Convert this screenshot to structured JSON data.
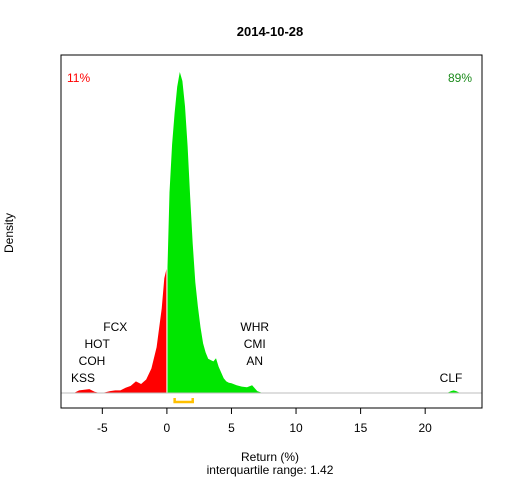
{
  "chart_data": {
    "type": "area",
    "title": "2014-10-28",
    "xlabel": "Return (%)",
    "ylabel": "Density",
    "subtitle": "interquartile range: 1.42",
    "xlim": [
      -8.2,
      24.4
    ],
    "ylim": [
      0,
      0.5
    ],
    "xticks": [
      -5,
      0,
      5,
      10,
      15,
      20
    ],
    "grid": false,
    "negative_share_label": "11%",
    "positive_share_label": "89%",
    "colors": {
      "negative": "#ff0000",
      "positive": "#00e600",
      "iqr": "#ffc000",
      "pct_negative": "#ff0000",
      "pct_positive": "#1a8a1a"
    },
    "iqr": [
      0.6,
      2.0
    ],
    "density": {
      "x": [
        -7.2,
        -6.8,
        -6.4,
        -6.0,
        -5.6,
        -5.2,
        -4.8,
        -4.4,
        -4.0,
        -3.6,
        -3.2,
        -2.8,
        -2.4,
        -2.0,
        -1.6,
        -1.2,
        -0.8,
        -0.4,
        -0.2,
        0.0,
        0.05,
        0.2,
        0.4,
        0.6,
        0.8,
        1.0,
        1.2,
        1.4,
        1.6,
        1.8,
        2.0,
        2.2,
        2.4,
        2.6,
        2.8,
        3.0,
        3.2,
        3.4,
        3.6,
        3.8,
        4.0,
        4.2,
        4.4,
        4.6,
        4.8,
        5.0,
        5.4,
        5.8,
        6.2,
        6.6,
        7.0,
        7.4,
        7.8,
        8.2,
        21.6,
        21.8,
        22.0,
        22.2,
        22.4,
        22.6,
        22.8
      ],
      "y": [
        0.0,
        0.004,
        0.005,
        0.006,
        0.002,
        0.0,
        0.001,
        0.003,
        0.004,
        0.004,
        0.008,
        0.011,
        0.018,
        0.014,
        0.021,
        0.038,
        0.071,
        0.131,
        0.178,
        0.195,
        0.195,
        0.311,
        0.386,
        0.434,
        0.475,
        0.498,
        0.484,
        0.445,
        0.383,
        0.306,
        0.232,
        0.172,
        0.134,
        0.102,
        0.077,
        0.063,
        0.053,
        0.051,
        0.049,
        0.054,
        0.041,
        0.032,
        0.023,
        0.018,
        0.016,
        0.015,
        0.012,
        0.01,
        0.009,
        0.012,
        0.003,
        0.0,
        0.0,
        0.0,
        0.0,
        0.001,
        0.003,
        0.004,
        0.003,
        0.001,
        0.0
      ]
    },
    "annotations": [
      {
        "text": "FCX",
        "x": -4.0,
        "row": 4
      },
      {
        "text": "HOT",
        "x": -5.4,
        "row": 3
      },
      {
        "text": "COH",
        "x": -5.8,
        "row": 2
      },
      {
        "text": "KSS",
        "x": -6.5,
        "row": 1
      },
      {
        "text": "WHR",
        "x": 6.8,
        "row": 4
      },
      {
        "text": "CMI",
        "x": 6.8,
        "row": 3
      },
      {
        "text": "AN",
        "x": 6.8,
        "row": 2
      },
      {
        "text": "CLF",
        "x": 22.0,
        "row": 1
      }
    ]
  }
}
